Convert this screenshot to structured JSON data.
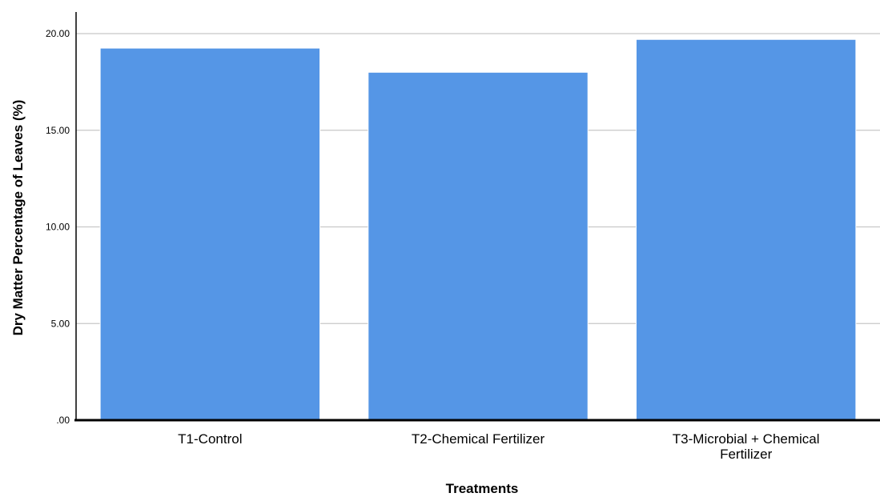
{
  "chart_data": {
    "type": "bar",
    "categories": [
      "T1-Control",
      "T2-Chemical Fertilizer",
      "T3-Microbial + Chemical Fertilizer"
    ],
    "category_label_lines": [
      [
        "T1-Control"
      ],
      [
        "T2-Chemical Fertilizer"
      ],
      [
        "T3-Microbial + Chemical",
        "Fertilizer"
      ]
    ],
    "values": [
      19.25,
      18.0,
      19.7
    ],
    "xlabel": "Treatments",
    "ylabel": "Dry Matter Percentage of Leaves (%)",
    "ylim": [
      0,
      21
    ],
    "yticks": [
      0,
      5,
      10,
      15,
      20
    ],
    "ytick_labels": [
      ".00",
      "5.00",
      "10.00",
      "15.00",
      "20.00"
    ],
    "grid": true,
    "legend": "none",
    "colors": {
      "bar": "#5596e6",
      "bar_stroke": "#ffffff",
      "grid": "#c8c8c8",
      "axis": "#000000"
    }
  }
}
